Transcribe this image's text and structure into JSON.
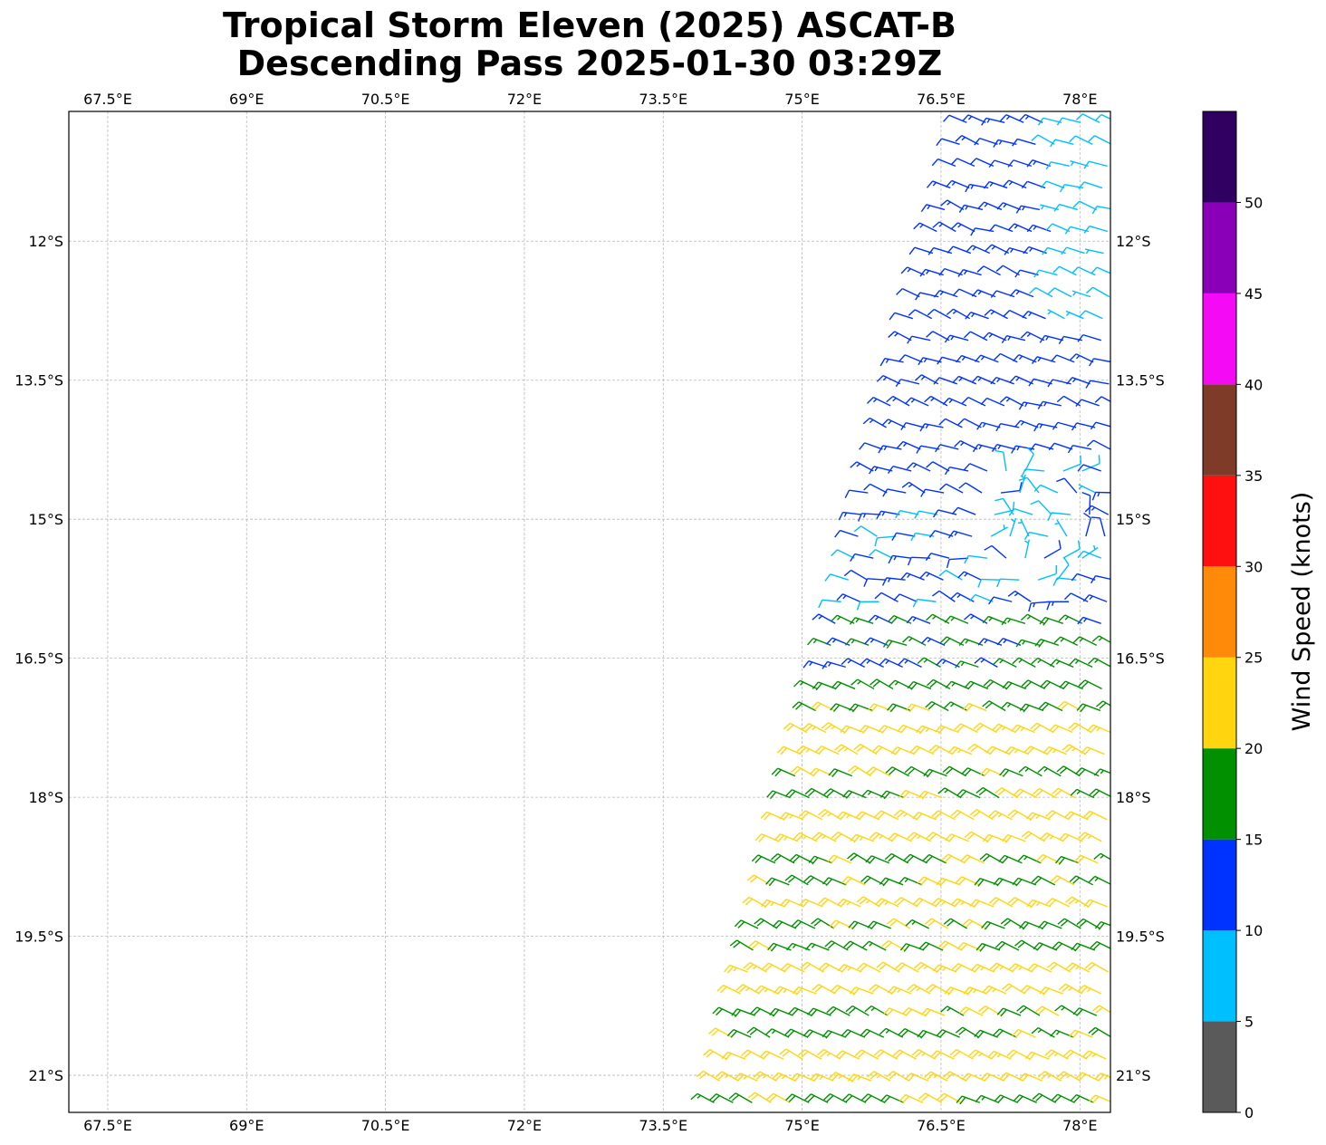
{
  "title": {
    "line1": "Tropical Storm Eleven (2025) ASCAT-B",
    "line2": "Descending Pass 2025-01-30 03:29Z"
  },
  "map": {
    "lon_range": [
      67.08,
      78.33
    ],
    "lat_range": [
      -21.4,
      -10.6
    ],
    "lon_ticks": [
      67.5,
      69,
      70.5,
      72,
      73.5,
      75,
      76.5,
      78
    ],
    "lon_tick_labels": [
      "67.5°E",
      "69°E",
      "70.5°E",
      "72°E",
      "73.5°E",
      "75°E",
      "76.5°E",
      "78°E"
    ],
    "lat_ticks": [
      -12,
      -13.5,
      -15,
      -16.5,
      -18,
      -19.5,
      -21
    ],
    "lat_tick_labels": [
      "12°S",
      "13.5°S",
      "15°S",
      "16.5°S",
      "18°S",
      "19.5°S",
      "21°S"
    ],
    "gridlines": true,
    "swath": {
      "north_edge": [
        [
          76.75,
          -10.7
        ],
        [
          78.2,
          -10.6
        ]
      ],
      "west_edge": [
        [
          76.75,
          -10.7
        ],
        [
          75.5,
          -15.5
        ],
        [
          74.0,
          -21.4
        ]
      ],
      "east_lon": 78.33
    },
    "center": [
      77.6,
      -15.0
    ]
  },
  "colorbar": {
    "label": "Wind Speed (knots)",
    "bounds": [
      0,
      5,
      10,
      15,
      20,
      25,
      30,
      35,
      40,
      45,
      50,
      55
    ],
    "tick_values": [
      0,
      5,
      10,
      15,
      20,
      25,
      30,
      35,
      40,
      45,
      50
    ],
    "tick_labels": [
      "0",
      "5",
      "10",
      "15",
      "20",
      "25",
      "30",
      "35",
      "40",
      "45",
      "50"
    ],
    "colors": [
      "#5a5a5a",
      "#00bfff",
      "#0033ff",
      "#009000",
      "#ffd510",
      "#ff8a0a",
      "#ff1010",
      "#7d3b28",
      "#f50af5",
      "#8a00b8",
      "#2f0060"
    ]
  }
}
